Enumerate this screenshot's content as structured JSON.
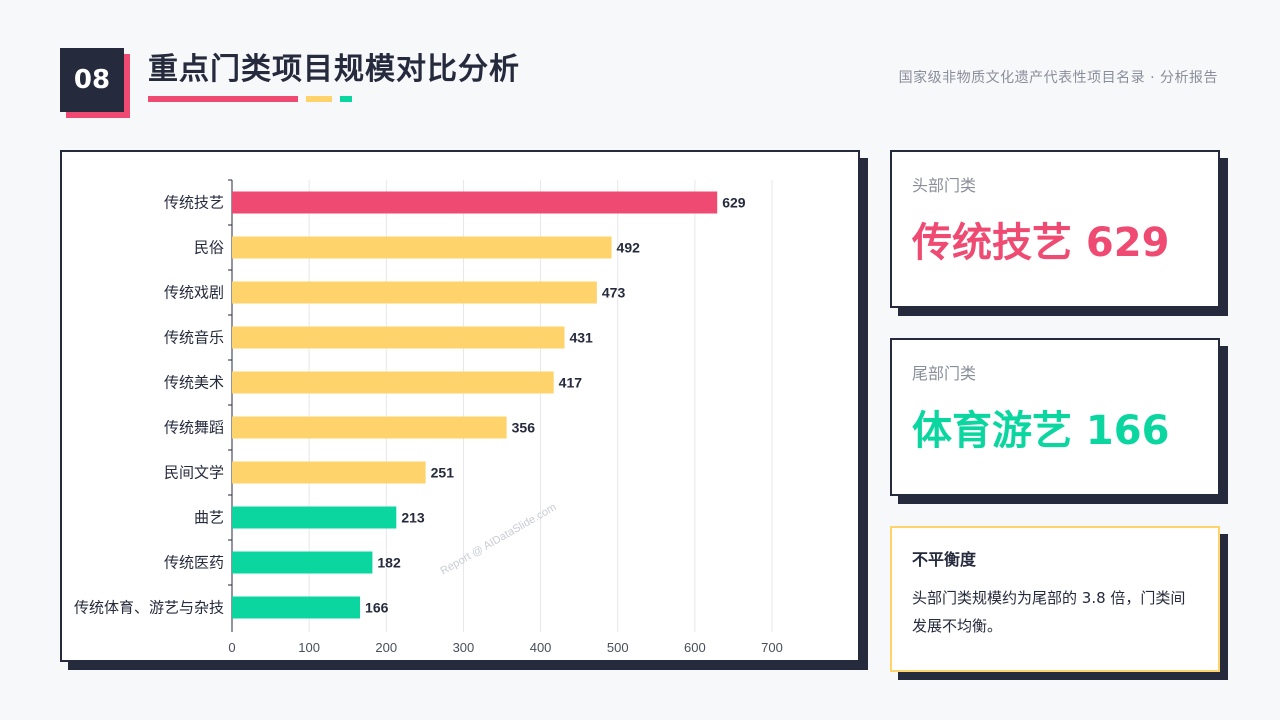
{
  "header": {
    "section_number": "08",
    "title": "重点门类项目规模对比分析",
    "subtitle": "国家级非物质文化遗产代表性项目名录 · 分析报告"
  },
  "colors": {
    "dark": "#262a3d",
    "pink": "#ef4a72",
    "yellow": "#ffd36b",
    "green": "#0bd6a0"
  },
  "chart_data": {
    "type": "bar",
    "orientation": "horizontal",
    "categories": [
      "传统技艺",
      "民俗",
      "传统戏剧",
      "传统音乐",
      "传统美术",
      "传统舞蹈",
      "民间文学",
      "曲艺",
      "传统医药",
      "传统体育、游艺与杂技"
    ],
    "values": [
      629,
      492,
      473,
      431,
      417,
      356,
      251,
      213,
      182,
      166
    ],
    "bar_colors": [
      "#ef4a72",
      "#ffd36b",
      "#ffd36b",
      "#ffd36b",
      "#ffd36b",
      "#ffd36b",
      "#ffd36b",
      "#0bd6a0",
      "#0bd6a0",
      "#0bd6a0"
    ],
    "xlim": [
      0,
      700
    ],
    "xticks": [
      0,
      100,
      200,
      300,
      400,
      500,
      600,
      700
    ],
    "grid": true,
    "watermark": "Report @ AIDataSlide.com"
  },
  "cards": {
    "top": {
      "label": "头部门类",
      "value": "传统技艺 629"
    },
    "bottom": {
      "label": "尾部门类",
      "value": "体育游艺 166"
    },
    "note": {
      "title": "不平衡度",
      "text": "头部门类规模约为尾部的 3.8 倍，门类间发展不均衡。"
    }
  }
}
